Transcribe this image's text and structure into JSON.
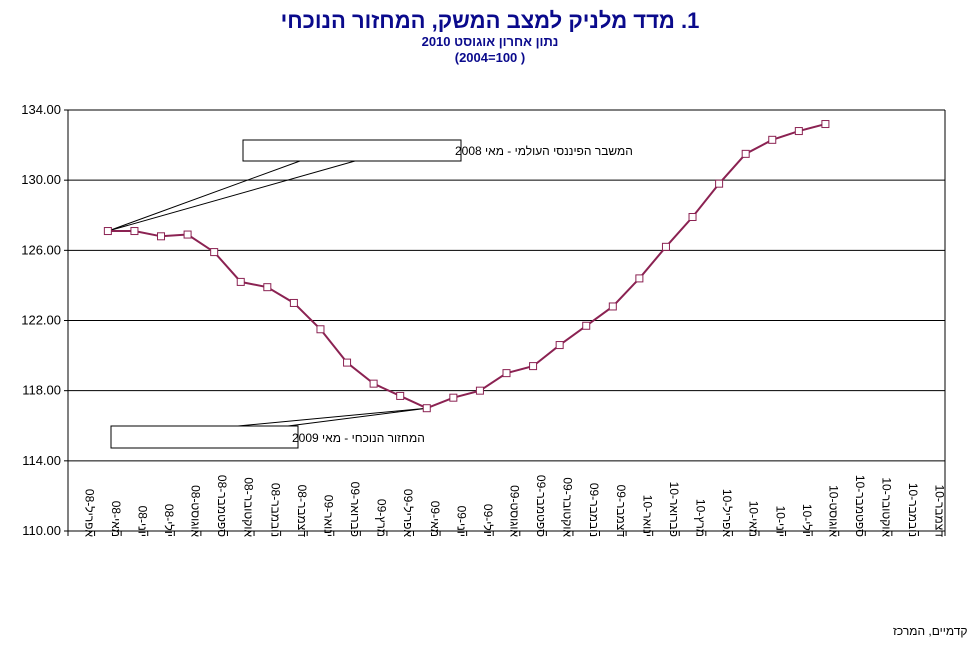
{
  "chart_data": {
    "type": "line",
    "title": "1.  מדד מלניק למצב המשק, המחזור הנוכחי",
    "subtitle": "נתון אחרון אוגוסט 2010",
    "subtitle2": "(2004=100 )",
    "ylim": [
      110,
      134
    ],
    "yticks": [
      "110.00",
      "114.00",
      "118.00",
      "122.00",
      "126.00",
      "130.00",
      "134.00"
    ],
    "categories": [
      "אפריל-08",
      "מאי-08",
      "יוני-08",
      "יולי-08",
      "אוגוסט-08",
      "ספטמבר-08",
      "אוקטובר-08",
      "נובמבר-08",
      "דצמבר-08",
      "ינואר-09",
      "פברואר-09",
      "מרץ-09",
      "אפריל-09",
      "מאי-09",
      "יוני-09",
      "יולי-09",
      "אוגוסט-09",
      "ספטמבר-09",
      "אוקטובר-09",
      "נובמבר-09",
      "דצמבר-09",
      "ינואר-10",
      "פברואר-10",
      "מרץ-10",
      "אפריל-10",
      "מאי-10",
      "יוני-10",
      "יולי-10",
      "אוגוסט-10",
      "ספטמבר-10",
      "אוקטובר-10",
      "נובמבר-10",
      "דצמבר-10"
    ],
    "series": [
      {
        "values": [
          null,
          127.1,
          127.1,
          126.8,
          126.9,
          125.9,
          124.2,
          123.9,
          123.0,
          121.5,
          119.6,
          118.4,
          117.7,
          117.0,
          117.6,
          118.0,
          119.0,
          119.4,
          120.6,
          121.7,
          122.8,
          124.4,
          126.2,
          127.9,
          129.8,
          131.5,
          132.3,
          132.8,
          133.2,
          null,
          null,
          null,
          null
        ],
        "color": "#8b2252"
      }
    ],
    "annotations": [
      {
        "text": "המשבר הפיננסי העולמי  - מאי 2008",
        "target_category": "מאי-08"
      },
      {
        "text": "המחזור הנוכחי  - מאי 2009",
        "target_category": "מאי-09"
      }
    ],
    "grid": true,
    "footer": "פרופ' רפי מלניק, המשנה לנשיא לעניינים אקדמיים, המרכז"
  }
}
